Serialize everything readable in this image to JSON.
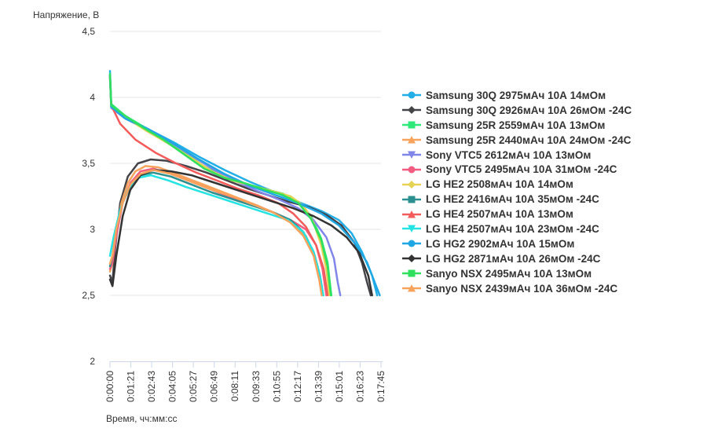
{
  "chart_data": {
    "type": "line",
    "ylabel": "Напряжение, В",
    "xlabel": "Время, чч:мм:сс",
    "ylim": [
      2,
      4.5
    ],
    "yticks": [
      2,
      2.5,
      3,
      3.5,
      4,
      4.5
    ],
    "ytick_labels": [
      "2",
      "2,5",
      "3",
      "3,5",
      "4",
      "4,5"
    ],
    "xlim_seconds": [
      0,
      1065
    ],
    "xtick_labels": [
      "0:00:00",
      "0:01:21",
      "0:02:43",
      "0:04:05",
      "0:05:27",
      "0:06:49",
      "0:08:11",
      "0:09:33",
      "0:10:55",
      "0:12:17",
      "0:13:39",
      "0:15:01",
      "0:16:23",
      "0:17:45"
    ],
    "grid": "horizontal",
    "legend_position": "right",
    "series": [
      {
        "name": "Samsung 30Q 2975мАч 10А 14мОм",
        "color": "#22aee6",
        "marker": "circle",
        "points": [
          [
            0,
            4.2
          ],
          [
            5,
            3.95
          ],
          [
            60,
            3.85
          ],
          [
            150,
            3.76
          ],
          [
            250,
            3.66
          ],
          [
            350,
            3.55
          ],
          [
            450,
            3.45
          ],
          [
            550,
            3.36
          ],
          [
            650,
            3.28
          ],
          [
            750,
            3.2
          ],
          [
            830,
            3.14
          ],
          [
            900,
            3.07
          ],
          [
            950,
            2.97
          ],
          [
            990,
            2.83
          ],
          [
            1030,
            2.65
          ],
          [
            1050,
            2.5
          ]
        ]
      },
      {
        "name": "Samsung 30Q 2926мАч 10А 26мОм -24С",
        "color": "#434348",
        "marker": "diamond",
        "points": [
          [
            0,
            2.65
          ],
          [
            10,
            2.6
          ],
          [
            20,
            2.85
          ],
          [
            40,
            3.2
          ],
          [
            70,
            3.4
          ],
          [
            110,
            3.5
          ],
          [
            160,
            3.53
          ],
          [
            220,
            3.52
          ],
          [
            300,
            3.48
          ],
          [
            380,
            3.43
          ],
          [
            460,
            3.37
          ],
          [
            540,
            3.31
          ],
          [
            620,
            3.26
          ],
          [
            700,
            3.21
          ],
          [
            780,
            3.17
          ],
          [
            850,
            3.11
          ],
          [
            910,
            3.03
          ],
          [
            960,
            2.9
          ],
          [
            990,
            2.75
          ],
          [
            1010,
            2.6
          ],
          [
            1025,
            2.5
          ]
        ]
      },
      {
        "name": "Samsung 25R 2559мАч 10А 13мОм",
        "color": "#2ee87a",
        "marker": "square",
        "points": [
          [
            0,
            4.18
          ],
          [
            5,
            3.95
          ],
          [
            60,
            3.86
          ],
          [
            130,
            3.78
          ],
          [
            200,
            3.7
          ],
          [
            280,
            3.6
          ],
          [
            360,
            3.49
          ],
          [
            440,
            3.4
          ],
          [
            520,
            3.35
          ],
          [
            600,
            3.31
          ],
          [
            680,
            3.27
          ],
          [
            740,
            3.21
          ],
          [
            790,
            3.1
          ],
          [
            830,
            2.93
          ],
          [
            855,
            2.75
          ],
          [
            870,
            2.5
          ]
        ]
      },
      {
        "name": "Samsung 25R 2440мАч 10А 24мОм -24С",
        "color": "#f7a35c",
        "marker": "triangle",
        "points": [
          [
            0,
            2.68
          ],
          [
            10,
            2.75
          ],
          [
            25,
            3.0
          ],
          [
            45,
            3.2
          ],
          [
            70,
            3.35
          ],
          [
            100,
            3.44
          ],
          [
            140,
            3.48
          ],
          [
            190,
            3.47
          ],
          [
            260,
            3.42
          ],
          [
            340,
            3.36
          ],
          [
            420,
            3.3
          ],
          [
            500,
            3.24
          ],
          [
            580,
            3.18
          ],
          [
            650,
            3.12
          ],
          [
            720,
            3.05
          ],
          [
            770,
            2.95
          ],
          [
            805,
            2.8
          ],
          [
            825,
            2.65
          ],
          [
            835,
            2.5
          ]
        ]
      },
      {
        "name": "Sony VTC5 2612мАч 10А 13мОм",
        "color": "#8085e9",
        "marker": "triangle-down",
        "points": [
          [
            0,
            4.15
          ],
          [
            5,
            3.92
          ],
          [
            60,
            3.84
          ],
          [
            140,
            3.76
          ],
          [
            230,
            3.67
          ],
          [
            320,
            3.56
          ],
          [
            410,
            3.45
          ],
          [
            500,
            3.36
          ],
          [
            580,
            3.29
          ],
          [
            660,
            3.23
          ],
          [
            740,
            3.16
          ],
          [
            800,
            3.07
          ],
          [
            850,
            2.94
          ],
          [
            880,
            2.78
          ],
          [
            895,
            2.6
          ],
          [
            905,
            2.5
          ]
        ]
      },
      {
        "name": "Sony VTC5 2495мАч 10А 31мОм -24С",
        "color": "#f15c80",
        "marker": "circle",
        "points": [
          [
            0,
            2.7
          ],
          [
            10,
            2.75
          ],
          [
            25,
            2.95
          ],
          [
            50,
            3.2
          ],
          [
            80,
            3.35
          ],
          [
            120,
            3.44
          ],
          [
            170,
            3.46
          ],
          [
            240,
            3.42
          ],
          [
            320,
            3.36
          ],
          [
            400,
            3.3
          ],
          [
            480,
            3.24
          ],
          [
            560,
            3.19
          ],
          [
            640,
            3.13
          ],
          [
            710,
            3.07
          ],
          [
            770,
            3.0
          ],
          [
            810,
            2.88
          ],
          [
            835,
            2.7
          ],
          [
            850,
            2.5
          ]
        ]
      },
      {
        "name": "LG HE2 2508мАч 10А 14мОм",
        "color": "#e4d354",
        "marker": "diamond",
        "points": [
          [
            0,
            4.15
          ],
          [
            5,
            3.93
          ],
          [
            60,
            3.85
          ],
          [
            140,
            3.75
          ],
          [
            230,
            3.65
          ],
          [
            320,
            3.54
          ],
          [
            400,
            3.44
          ],
          [
            480,
            3.37
          ],
          [
            560,
            3.33
          ],
          [
            640,
            3.29
          ],
          [
            710,
            3.25
          ],
          [
            760,
            3.18
          ],
          [
            800,
            3.05
          ],
          [
            830,
            2.88
          ],
          [
            850,
            2.7
          ],
          [
            862,
            2.5
          ]
        ]
      },
      {
        "name": "LG HE2 2416мАч 10А 35мОм -24С",
        "color": "#2b908f",
        "marker": "square",
        "points": [
          [
            0,
            2.72
          ],
          [
            10,
            2.8
          ],
          [
            25,
            3.0
          ],
          [
            50,
            3.2
          ],
          [
            80,
            3.33
          ],
          [
            120,
            3.41
          ],
          [
            170,
            3.43
          ],
          [
            240,
            3.4
          ],
          [
            320,
            3.34
          ],
          [
            400,
            3.28
          ],
          [
            480,
            3.23
          ],
          [
            560,
            3.18
          ],
          [
            640,
            3.13
          ],
          [
            710,
            3.07
          ],
          [
            760,
            2.98
          ],
          [
            800,
            2.83
          ],
          [
            825,
            2.65
          ],
          [
            838,
            2.5
          ]
        ]
      },
      {
        "name": "LG HE4 2507мАч 10А 13мОм",
        "color": "#f45b5b",
        "marker": "triangle",
        "points": [
          [
            0,
            4.16
          ],
          [
            5,
            3.94
          ],
          [
            40,
            3.8
          ],
          [
            100,
            3.68
          ],
          [
            180,
            3.58
          ],
          [
            260,
            3.5
          ],
          [
            340,
            3.43
          ],
          [
            420,
            3.37
          ],
          [
            500,
            3.31
          ],
          [
            580,
            3.26
          ],
          [
            660,
            3.2
          ],
          [
            720,
            3.12
          ],
          [
            770,
            3.02
          ],
          [
            810,
            2.88
          ],
          [
            840,
            2.7
          ],
          [
            855,
            2.5
          ]
        ]
      },
      {
        "name": "LG HE4 2507мАч 10А 23мОм -24С",
        "color": "#23e3e3",
        "marker": "triangle-down",
        "points": [
          [
            0,
            2.8
          ],
          [
            15,
            2.95
          ],
          [
            40,
            3.15
          ],
          [
            70,
            3.3
          ],
          [
            110,
            3.39
          ],
          [
            160,
            3.41
          ],
          [
            230,
            3.37
          ],
          [
            300,
            3.32
          ],
          [
            380,
            3.27
          ],
          [
            460,
            3.22
          ],
          [
            540,
            3.17
          ],
          [
            620,
            3.12
          ],
          [
            700,
            3.07
          ],
          [
            760,
            2.98
          ],
          [
            800,
            2.83
          ],
          [
            825,
            2.65
          ],
          [
            838,
            2.5
          ]
        ]
      },
      {
        "name": "LG HG2 2902мАч 10А 15мОм",
        "color": "#1fa7e4",
        "marker": "circle",
        "points": [
          [
            0,
            4.17
          ],
          [
            5,
            3.93
          ],
          [
            60,
            3.84
          ],
          [
            150,
            3.76
          ],
          [
            250,
            3.65
          ],
          [
            350,
            3.53
          ],
          [
            450,
            3.42
          ],
          [
            550,
            3.33
          ],
          [
            650,
            3.26
          ],
          [
            750,
            3.19
          ],
          [
            830,
            3.12
          ],
          [
            900,
            3.03
          ],
          [
            960,
            2.9
          ],
          [
            1010,
            2.75
          ],
          [
            1040,
            2.6
          ],
          [
            1060,
            2.5
          ]
        ]
      },
      {
        "name": "LG HG2 2871мАч 10А 26мОм -24С",
        "color": "#333333",
        "marker": "diamond",
        "points": [
          [
            0,
            2.62
          ],
          [
            10,
            2.57
          ],
          [
            25,
            2.8
          ],
          [
            50,
            3.1
          ],
          [
            80,
            3.3
          ],
          [
            120,
            3.41
          ],
          [
            170,
            3.45
          ],
          [
            240,
            3.44
          ],
          [
            320,
            3.41
          ],
          [
            400,
            3.36
          ],
          [
            480,
            3.31
          ],
          [
            560,
            3.26
          ],
          [
            640,
            3.21
          ],
          [
            720,
            3.16
          ],
          [
            800,
            3.1
          ],
          [
            870,
            3.03
          ],
          [
            930,
            2.94
          ],
          [
            980,
            2.82
          ],
          [
            1015,
            2.65
          ],
          [
            1030,
            2.5
          ]
        ]
      },
      {
        "name": "Sanyo NSX 2495мАч 10А 13мОм",
        "color": "#2ee05d",
        "marker": "square",
        "points": [
          [
            0,
            4.17
          ],
          [
            5,
            3.94
          ],
          [
            60,
            3.86
          ],
          [
            130,
            3.77
          ],
          [
            210,
            3.68
          ],
          [
            290,
            3.57
          ],
          [
            370,
            3.46
          ],
          [
            450,
            3.39
          ],
          [
            530,
            3.35
          ],
          [
            610,
            3.3
          ],
          [
            680,
            3.26
          ],
          [
            740,
            3.2
          ],
          [
            790,
            3.08
          ],
          [
            830,
            2.92
          ],
          [
            855,
            2.72
          ],
          [
            868,
            2.5
          ]
        ]
      },
      {
        "name": "Sanyo NSX 2439мАч 10А 36мОм -24С",
        "color": "#f7a35c",
        "marker": "triangle",
        "points": [
          [
            0,
            2.74
          ],
          [
            10,
            2.8
          ],
          [
            25,
            3.0
          ],
          [
            50,
            3.2
          ],
          [
            80,
            3.34
          ],
          [
            120,
            3.42
          ],
          [
            170,
            3.45
          ],
          [
            240,
            3.42
          ],
          [
            320,
            3.36
          ],
          [
            400,
            3.3
          ],
          [
            480,
            3.25
          ],
          [
            560,
            3.19
          ],
          [
            640,
            3.13
          ],
          [
            710,
            3.05
          ],
          [
            760,
            2.95
          ],
          [
            800,
            2.8
          ],
          [
            822,
            2.62
          ],
          [
            832,
            2.5
          ]
        ]
      }
    ]
  }
}
